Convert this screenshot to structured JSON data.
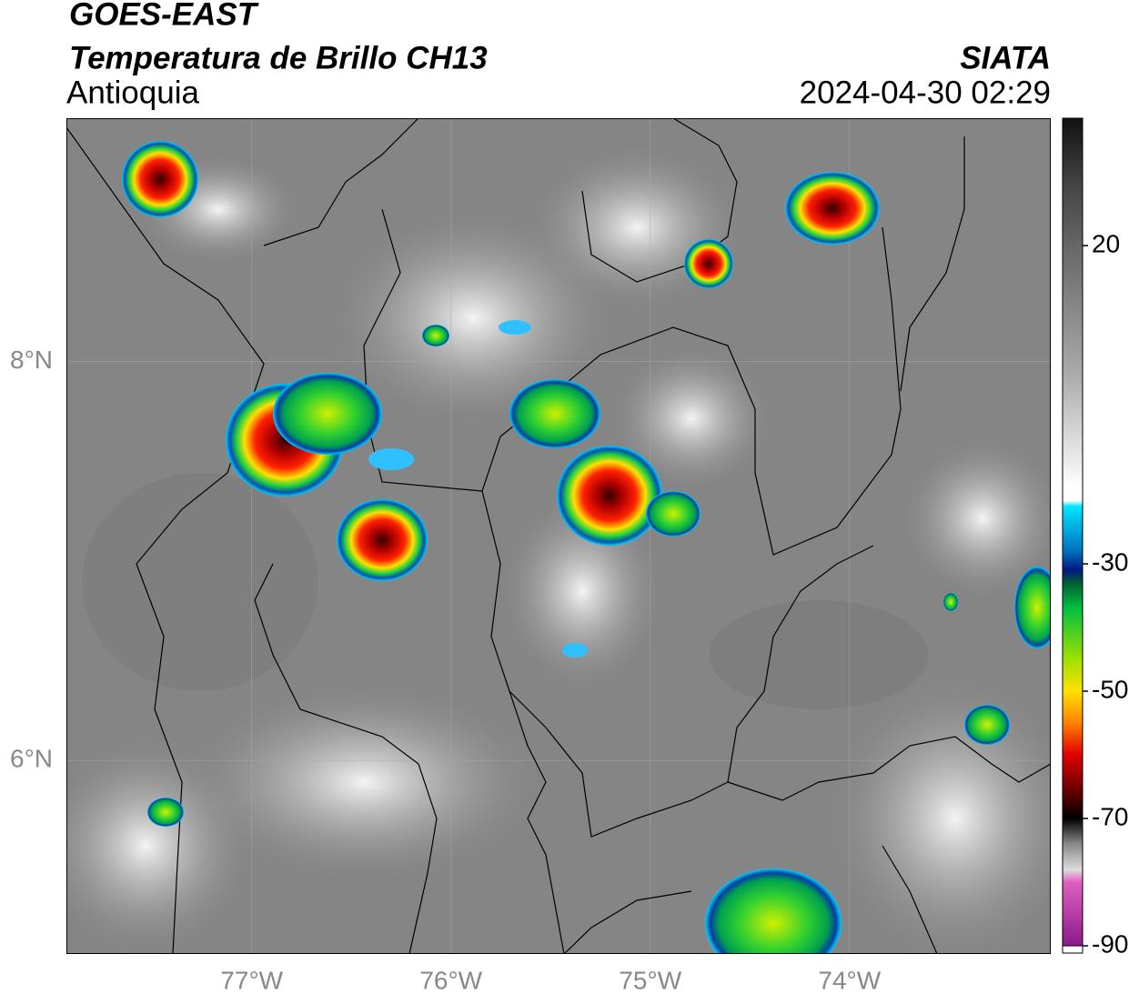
{
  "header": {
    "title": "GOES-EAST",
    "subtitle": "Temperatura de Brillo CH13",
    "region": "Antioquia",
    "source": "SIATA",
    "datetime": "2024-04-30 02:29"
  },
  "map": {
    "lon_range": [
      -77.93,
      -72.99
    ],
    "lat_range": [
      5.03,
      9.22
    ],
    "lon_ticks": [
      {
        "value": -77,
        "label": "77°W"
      },
      {
        "value": -76,
        "label": "76°W"
      },
      {
        "value": -75,
        "label": "75°W"
      },
      {
        "value": -74,
        "label": "74°W"
      }
    ],
    "lat_ticks": [
      {
        "value": 8,
        "label": "8°N"
      },
      {
        "value": 6,
        "label": "6°N"
      }
    ],
    "grid": true
  },
  "colorbar": {
    "range": [
      -90,
      40
    ],
    "ticks": [
      20,
      -30,
      -50,
      -70,
      -90
    ]
  }
}
